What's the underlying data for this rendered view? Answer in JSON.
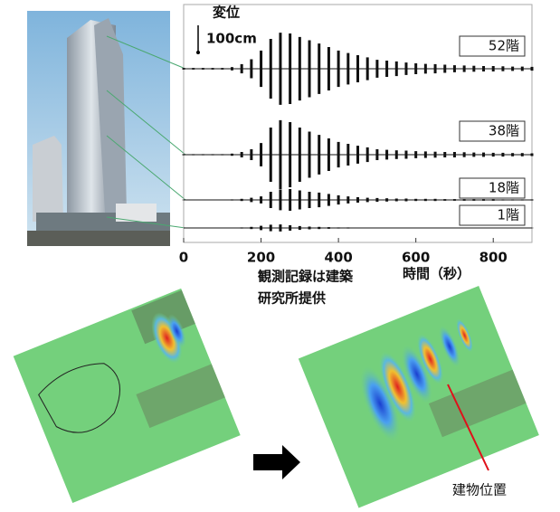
{
  "chart_data": {
    "type": "envelope",
    "displacement_label": "変位",
    "scale": {
      "value": 100,
      "label": "100cm"
    },
    "x_label": "時間（秒）",
    "credit": [
      "観測記録は建築",
      "研究所提供"
    ],
    "xlim": [
      0,
      900
    ],
    "xticks": [
      0,
      200,
      400,
      600,
      800
    ],
    "x": [
      0,
      25,
      50,
      75,
      100,
      125,
      150,
      175,
      200,
      225,
      250,
      275,
      300,
      325,
      350,
      375,
      400,
      425,
      450,
      475,
      500,
      525,
      550,
      575,
      600,
      625,
      650,
      675,
      700,
      725,
      750,
      775,
      800,
      825,
      850,
      875,
      900
    ],
    "series": [
      {
        "name": "52階",
        "color": "#111111",
        "values": [
          3,
          3,
          3,
          3,
          3,
          6,
          17,
          35,
          67,
          110,
          133,
          130,
          117,
          105,
          93,
          80,
          67,
          58,
          50,
          42,
          33,
          30,
          27,
          23,
          20,
          18,
          17,
          15,
          13,
          12,
          11,
          10,
          10,
          9,
          8,
          8,
          7
        ]
      },
      {
        "name": "38階",
        "color": "#111111",
        "values": [
          2,
          2,
          2,
          2,
          2,
          4,
          10,
          20,
          43,
          100,
          127,
          120,
          100,
          85,
          73,
          60,
          47,
          40,
          33,
          27,
          20,
          18,
          16,
          15,
          13,
          12,
          11,
          10,
          10,
          9,
          8,
          8,
          7,
          7,
          6,
          6,
          5
        ]
      },
      {
        "name": "18階",
        "color": "#111111",
        "values": [
          1,
          1,
          1,
          1,
          1,
          2,
          4,
          8,
          13,
          30,
          38,
          40,
          35,
          30,
          27,
          22,
          17,
          13,
          10,
          8,
          7,
          6,
          5,
          5,
          4,
          4,
          4,
          3,
          3,
          3,
          3,
          3,
          3,
          2,
          2,
          2,
          2
        ]
      },
      {
        "name": "1階",
        "color": "#111111",
        "values": [
          0,
          0,
          0,
          0,
          0,
          1,
          2,
          4,
          8,
          12,
          13,
          10,
          7,
          5,
          4,
          3,
          2,
          2,
          1,
          1,
          1,
          1,
          1,
          1,
          1,
          1,
          1,
          1,
          1,
          1,
          1,
          1,
          1,
          1,
          1,
          1,
          1
        ]
      }
    ]
  },
  "map": {
    "label": "建物位置"
  }
}
